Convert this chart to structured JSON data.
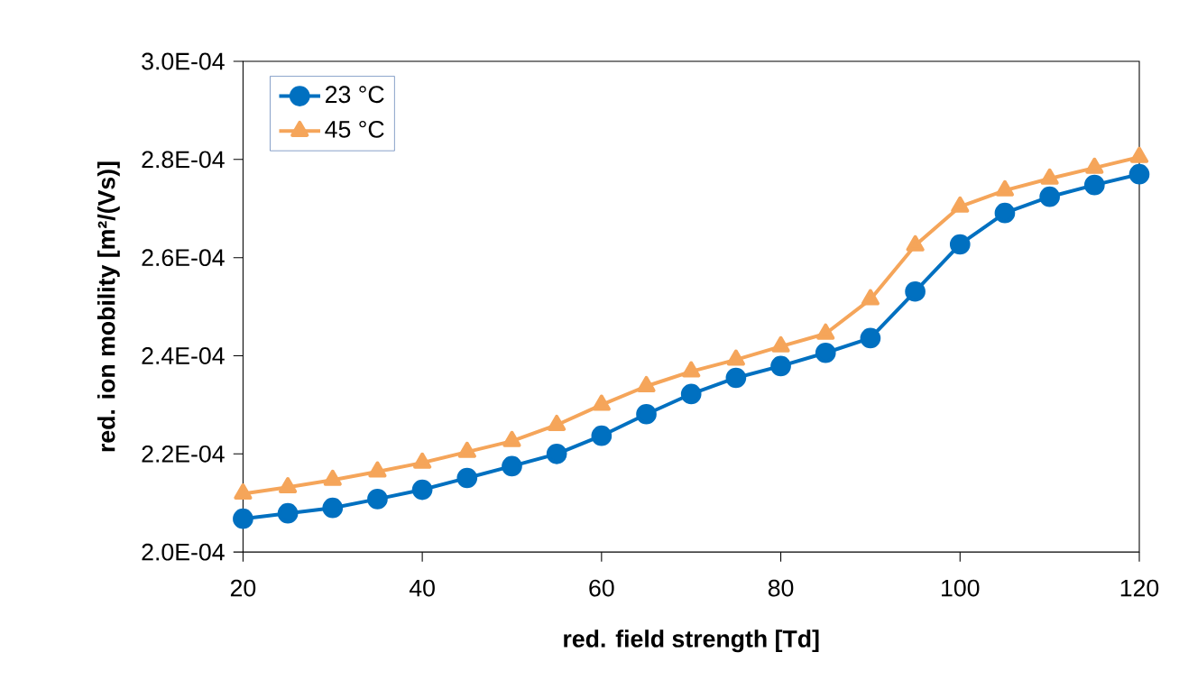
{
  "chart_data": {
    "type": "line",
    "xlabel": "red. field strength [Td]",
    "ylabel": "red. ion mobility [m²/(Vs)]",
    "x": [
      20,
      25,
      30,
      35,
      40,
      45,
      50,
      55,
      60,
      65,
      70,
      75,
      80,
      85,
      90,
      95,
      100,
      105,
      110,
      115,
      120
    ],
    "series": [
      {
        "name": "23 °C",
        "color": "#0070c0",
        "marker": "circle",
        "values": [
          0.0002068,
          0.0002079,
          0.000209,
          0.0002108,
          0.0002127,
          0.0002151,
          0.0002175,
          0.00022,
          0.0002237,
          0.0002281,
          0.0002322,
          0.0002355,
          0.0002379,
          0.0002406,
          0.0002436,
          0.0002531,
          0.0002627,
          0.0002691,
          0.0002724,
          0.0002748,
          0.000277
        ]
      },
      {
        "name": "45 °C",
        "color": "#f5a55a",
        "marker": "triangle",
        "values": [
          0.0002119,
          0.0002132,
          0.0002147,
          0.0002164,
          0.0002182,
          0.0002204,
          0.0002226,
          0.0002259,
          0.00023,
          0.0002338,
          0.0002368,
          0.0002392,
          0.0002419,
          0.0002445,
          0.0002515,
          0.0002625,
          0.0002704,
          0.0002737,
          0.0002761,
          0.0002783,
          0.0002805
        ]
      }
    ],
    "xlim": [
      20,
      120
    ],
    "xticks": [
      20,
      40,
      60,
      80,
      100,
      120
    ],
    "ylim": [
      0.0002,
      0.0003
    ],
    "yticks": [
      {
        "value": 0.0002,
        "label": "2.0E-04"
      },
      {
        "value": 0.00022,
        "label": "2.2E-04"
      },
      {
        "value": 0.00024,
        "label": "2.4E-04"
      },
      {
        "value": 0.00026,
        "label": "2.6E-04"
      },
      {
        "value": 0.00028,
        "label": "2.8E-04"
      },
      {
        "value": 0.0003,
        "label": "3.0E-04"
      }
    ],
    "grid": false,
    "legend": "top left"
  }
}
